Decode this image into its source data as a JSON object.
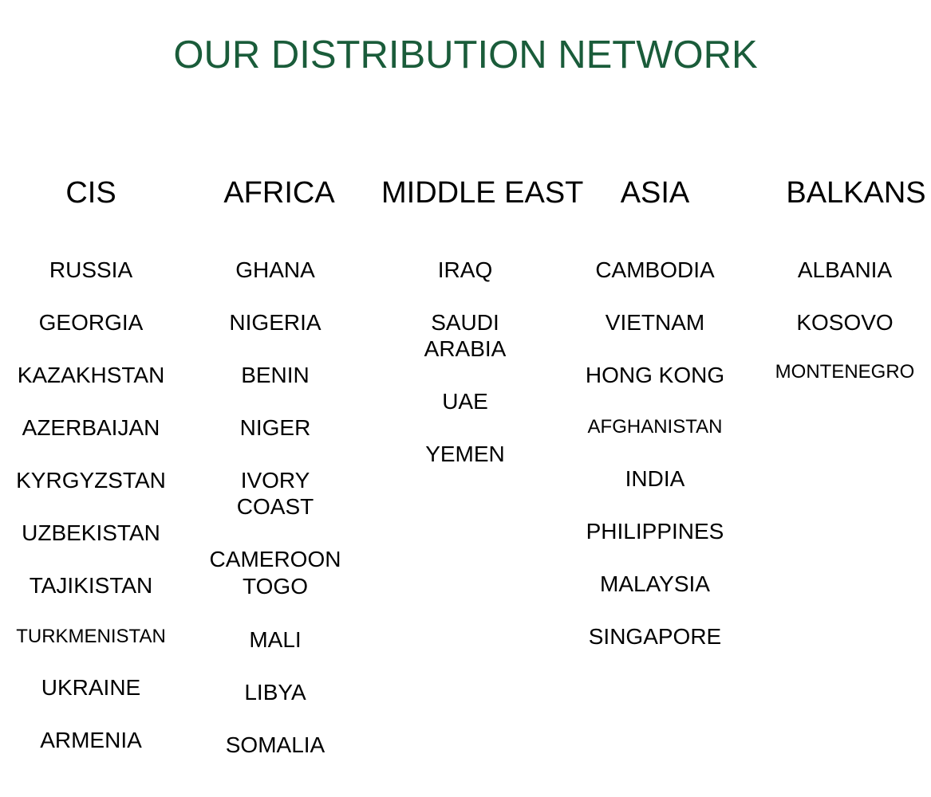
{
  "title": "OUR DISTRIBUTION NETWORK",
  "title_color": "#1a5c3a",
  "regions": [
    {
      "heading": "CIS",
      "countries": [
        "RUSSIA",
        "GEORGIA",
        "KAZAKHSTAN",
        "AZERBAIJAN",
        "KYRGYZSTAN",
        "UZBEKISTAN",
        "TAJIKISTAN",
        "TURKMENISTAN",
        "UKRAINE",
        "ARMENIA"
      ]
    },
    {
      "heading": "AFRICA",
      "countries": [
        "GHANA",
        "NIGERIA",
        "BENIN",
        "NIGER",
        "IVORY COAST",
        "CAMEROON",
        "TOGO",
        "MALI",
        "LIBYA",
        "SOMALIA"
      ]
    },
    {
      "heading": "MIDDLE EAST",
      "countries": [
        "IRAQ",
        "SAUDI ARABIA",
        "UAE",
        "YEMEN"
      ]
    },
    {
      "heading": "ASIA",
      "countries": [
        "CAMBODIA",
        "VIETNAM",
        "HONG KONG",
        "AFGHANISTAN",
        "INDIA",
        "PHILIPPINES",
        "MALAYSIA",
        "SINGAPORE"
      ]
    },
    {
      "heading": "BALKANS",
      "countries": [
        "ALBANIA",
        "KOSOVO",
        "MONTENEGRO"
      ]
    }
  ]
}
